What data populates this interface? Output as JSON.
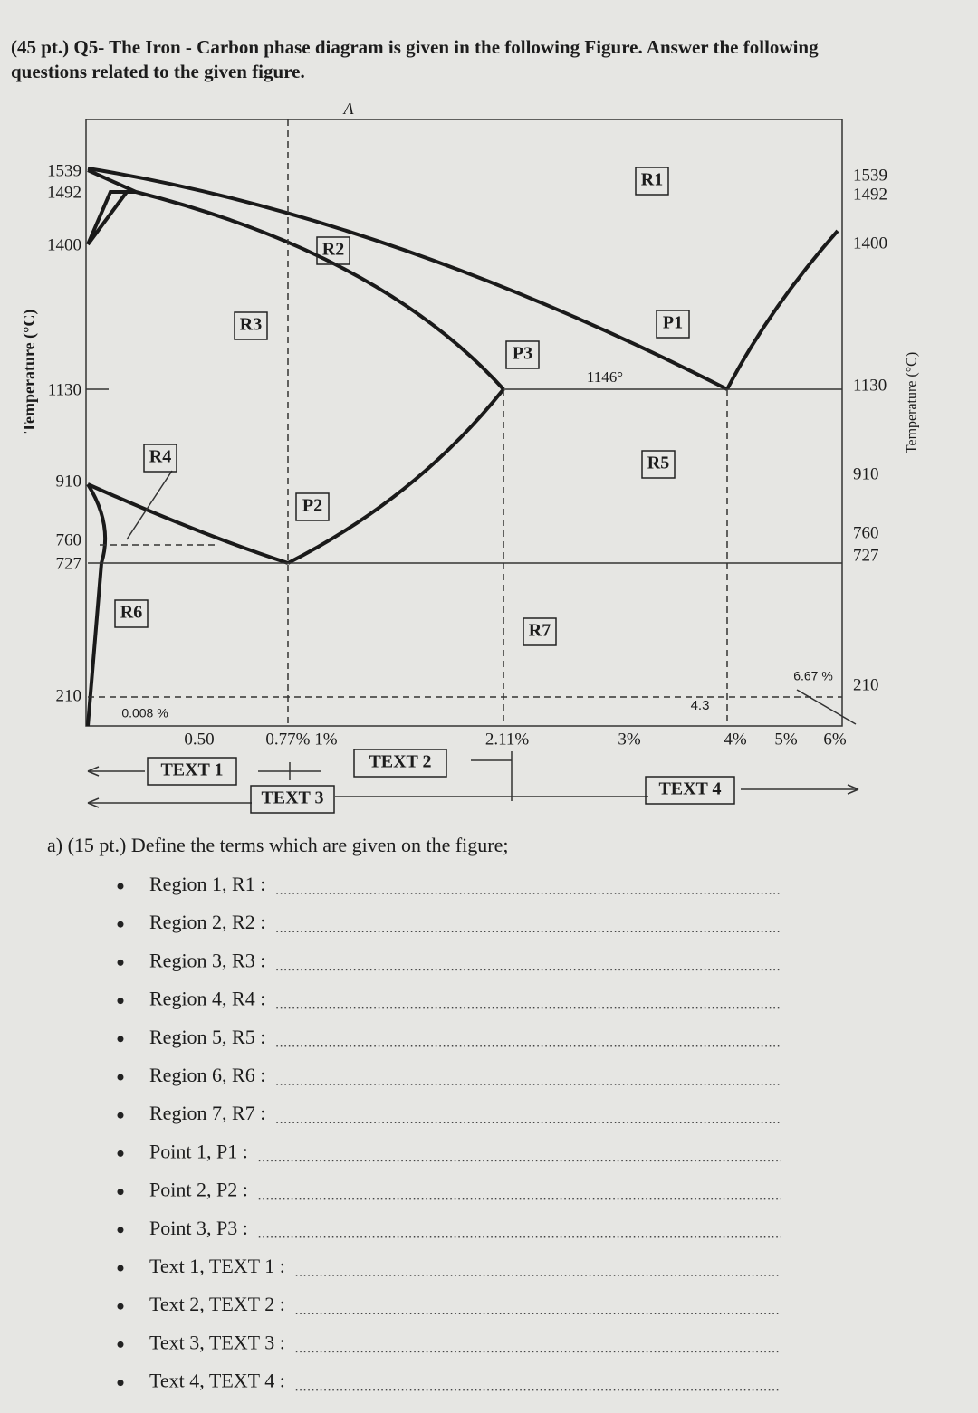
{
  "header": {
    "lines": [
      "(45 pt.) Q5-  The Iron - Carbon phase diagram is given in the following Figure. Answer the following",
      "questions related to the given figure."
    ]
  },
  "figure": {
    "top_label": "A",
    "axis_title_left": "Temperature (°C)",
    "axis_title_right": "Temperature (°C)",
    "left_temps": [
      "1539",
      "1492",
      "1400",
      "1130",
      "910",
      "760",
      "727",
      "210"
    ],
    "right_temps": [
      "1539",
      "1492",
      "1400",
      "1130",
      "910",
      "760",
      "727",
      "210"
    ],
    "boxes": [
      "R1",
      "R2",
      "R3",
      "R4",
      "R5",
      "R6",
      "R7",
      "P1",
      "P2",
      "P3"
    ],
    "annotations": [
      "1146°",
      "6.67 %",
      "0.008 %",
      "4.3"
    ],
    "compositions": [
      "0.50",
      "0.77% 1%",
      "2.11%",
      "3%",
      "4%",
      "5%",
      "6%"
    ],
    "text_boxes": [
      "TEXT 1",
      "TEXT 2",
      "TEXT 3",
      "TEXT 4"
    ]
  },
  "question": {
    "title": "a) (15 pt.) Define the terms which are given on the figure;",
    "items": [
      "Region 1, R1 :",
      "Region 2, R2 :",
      "Region 3, R3 :",
      "Region 4, R4 :",
      "Region 5, R5 :",
      "Region 6, R6 :",
      "Region 7, R7 :",
      "Point 1, P1 :",
      "Point 2, P2 :",
      "Point 3, P3 :",
      "Text 1, TEXT 1 :",
      "Text 2, TEXT 2 :",
      "Text 3, TEXT 3 :",
      "Text 4, TEXT 4 :"
    ]
  }
}
